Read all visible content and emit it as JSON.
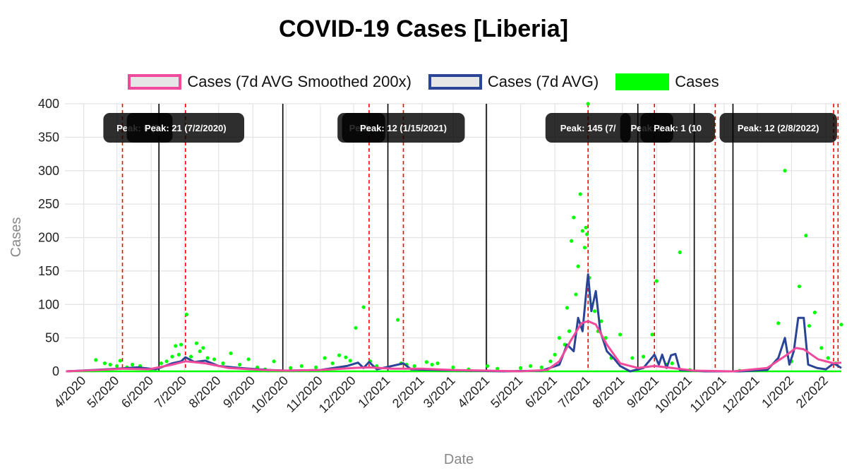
{
  "chart_data": {
    "type": "line",
    "title": "COVID-19 Cases [Liberia]",
    "xlabel": "Date",
    "ylabel": "Cases",
    "ylim": [
      0,
      400
    ],
    "xlim": [
      "2020-03-15",
      "2022-02-15"
    ],
    "y_ticks": [
      0,
      50,
      100,
      150,
      200,
      250,
      300,
      350,
      400
    ],
    "x_ticks": [
      {
        "date": "2020-04-01",
        "label": "4/2020"
      },
      {
        "date": "2020-05-01",
        "label": "5/2020"
      },
      {
        "date": "2020-06-01",
        "label": "6/2020"
      },
      {
        "date": "2020-07-01",
        "label": "7/2020"
      },
      {
        "date": "2020-08-01",
        "label": "8/2020"
      },
      {
        "date": "2020-09-01",
        "label": "9/2020"
      },
      {
        "date": "2020-10-01",
        "label": "10/2020"
      },
      {
        "date": "2020-11-01",
        "label": "11/2020"
      },
      {
        "date": "2020-12-01",
        "label": "12/2020"
      },
      {
        "date": "2021-01-01",
        "label": "1/2021"
      },
      {
        "date": "2021-02-01",
        "label": "2/2021"
      },
      {
        "date": "2021-03-01",
        "label": "3/2021"
      },
      {
        "date": "2021-04-01",
        "label": "4/2021"
      },
      {
        "date": "2021-05-01",
        "label": "5/2021"
      },
      {
        "date": "2021-06-01",
        "label": "6/2021"
      },
      {
        "date": "2021-07-01",
        "label": "7/2021"
      },
      {
        "date": "2021-08-01",
        "label": "8/2021"
      },
      {
        "date": "2021-09-01",
        "label": "9/2021"
      },
      {
        "date": "2021-10-01",
        "label": "10/2021"
      },
      {
        "date": "2021-11-01",
        "label": "11/2021"
      },
      {
        "date": "2021-12-01",
        "label": "12/2021"
      },
      {
        "date": "2022-01-01",
        "label": "1/2022"
      },
      {
        "date": "2022-02-01",
        "label": "2/2022"
      }
    ],
    "legend": {
      "position": "top",
      "entries": [
        {
          "label": "Cases (7d AVG Smoothed 200x)",
          "color": "#ef4a9b"
        },
        {
          "label": "Cases (7d AVG)",
          "color": "#2a4596"
        },
        {
          "label": "Cases",
          "color": "#00ff00"
        }
      ]
    },
    "grid": true,
    "wave_boundaries": [
      "2020-06-08",
      "2020-09-28",
      "2021-01-01",
      "2021-03-31",
      "2021-08-15",
      "2021-10-05",
      "2021-11-09"
    ],
    "peak_lines": [
      "2020-05-06",
      "2020-07-02",
      "2020-12-15",
      "2021-01-15",
      "2021-07-01",
      "2021-08-30",
      "2021-10-24",
      "2022-02-08",
      "2022-02-12"
    ],
    "peak_labels": [
      {
        "date": "2020-05-20",
        "text": "Peak: 6 (5"
      },
      {
        "date": "2020-07-02",
        "text": "Peak: 21 (7/2/2020)"
      },
      {
        "date": "2020-12-08",
        "text": "Peak: "
      },
      {
        "date": "2021-01-15",
        "text": "Peak: 12 (1/15/2021)"
      },
      {
        "date": "2021-07-01",
        "text": "Peak: 145 (7/"
      },
      {
        "date": "2021-08-23",
        "text": "Peak: 2"
      },
      {
        "date": "2021-09-20",
        "text": "Peak: 1 (10"
      },
      {
        "date": "2021-12-20",
        "text": "Peak: 12 (2/8/2022)"
      }
    ],
    "series": [
      {
        "name": "Cases (7d AVG Smoothed 200x)",
        "color": "#ef4a9b",
        "points": [
          [
            "2020-03-16",
            0
          ],
          [
            "2020-04-15",
            2
          ],
          [
            "2020-05-06",
            4
          ],
          [
            "2020-05-30",
            3
          ],
          [
            "2020-06-20",
            10
          ],
          [
            "2020-07-02",
            15
          ],
          [
            "2020-07-20",
            12
          ],
          [
            "2020-08-10",
            5
          ],
          [
            "2020-09-10",
            2
          ],
          [
            "2020-10-01",
            1
          ],
          [
            "2020-11-01",
            2
          ],
          [
            "2020-12-01",
            5
          ],
          [
            "2020-12-15",
            6
          ],
          [
            "2021-01-05",
            4
          ],
          [
            "2021-02-01",
            4
          ],
          [
            "2021-03-01",
            2
          ],
          [
            "2021-04-01",
            1
          ],
          [
            "2021-05-01",
            0
          ],
          [
            "2021-05-25",
            2
          ],
          [
            "2021-06-05",
            15
          ],
          [
            "2021-06-15",
            45
          ],
          [
            "2021-06-25",
            72
          ],
          [
            "2021-07-01",
            75
          ],
          [
            "2021-07-08",
            70
          ],
          [
            "2021-07-18",
            40
          ],
          [
            "2021-07-30",
            12
          ],
          [
            "2021-08-15",
            5
          ],
          [
            "2021-08-30",
            8
          ],
          [
            "2021-09-15",
            5
          ],
          [
            "2021-10-05",
            1
          ],
          [
            "2021-11-09",
            0
          ],
          [
            "2021-12-10",
            5
          ],
          [
            "2021-12-28",
            25
          ],
          [
            "2022-01-05",
            35
          ],
          [
            "2022-01-12",
            33
          ],
          [
            "2022-01-25",
            18
          ],
          [
            "2022-02-08",
            12
          ],
          [
            "2022-02-15",
            13
          ]
        ]
      },
      {
        "name": "Cases (7d AVG)",
        "color": "#2a4596",
        "points": [
          [
            "2020-03-16",
            0
          ],
          [
            "2020-04-10",
            2
          ],
          [
            "2020-05-01",
            4
          ],
          [
            "2020-05-20",
            6
          ],
          [
            "2020-06-05",
            3
          ],
          [
            "2020-06-20",
            12
          ],
          [
            "2020-06-28",
            15
          ],
          [
            "2020-07-02",
            21
          ],
          [
            "2020-07-10",
            14
          ],
          [
            "2020-07-20",
            16
          ],
          [
            "2020-08-01",
            8
          ],
          [
            "2020-08-20",
            5
          ],
          [
            "2020-09-15",
            2
          ],
          [
            "2020-10-01",
            1
          ],
          [
            "2020-11-01",
            2
          ],
          [
            "2020-11-25",
            8
          ],
          [
            "2020-12-05",
            13
          ],
          [
            "2020-12-10",
            5
          ],
          [
            "2020-12-15",
            14
          ],
          [
            "2020-12-22",
            3
          ],
          [
            "2021-01-10",
            10
          ],
          [
            "2021-01-15",
            12
          ],
          [
            "2021-01-22",
            3
          ],
          [
            "2021-02-15",
            2
          ],
          [
            "2021-03-15",
            1
          ],
          [
            "2021-04-15",
            0
          ],
          [
            "2021-05-20",
            1
          ],
          [
            "2021-06-05",
            10
          ],
          [
            "2021-06-12",
            40
          ],
          [
            "2021-06-18",
            30
          ],
          [
            "2021-06-22",
            80
          ],
          [
            "2021-06-26",
            60
          ],
          [
            "2021-06-30",
            130
          ],
          [
            "2021-07-01",
            145
          ],
          [
            "2021-07-04",
            90
          ],
          [
            "2021-07-08",
            120
          ],
          [
            "2021-07-12",
            60
          ],
          [
            "2021-07-18",
            30
          ],
          [
            "2021-07-24",
            20
          ],
          [
            "2021-07-30",
            8
          ],
          [
            "2021-08-08",
            0
          ],
          [
            "2021-08-20",
            5
          ],
          [
            "2021-08-30",
            25
          ],
          [
            "2021-09-03",
            10
          ],
          [
            "2021-09-06",
            25
          ],
          [
            "2021-09-10",
            5
          ],
          [
            "2021-09-14",
            24
          ],
          [
            "2021-09-18",
            26
          ],
          [
            "2021-09-22",
            2
          ],
          [
            "2021-10-15",
            0
          ],
          [
            "2021-11-15",
            0
          ],
          [
            "2021-12-10",
            2
          ],
          [
            "2021-12-20",
            20
          ],
          [
            "2021-12-26",
            50
          ],
          [
            "2021-12-30",
            10
          ],
          [
            "2022-01-03",
            30
          ],
          [
            "2022-01-07",
            80
          ],
          [
            "2022-01-12",
            80
          ],
          [
            "2022-01-16",
            10
          ],
          [
            "2022-01-24",
            5
          ],
          [
            "2022-02-01",
            3
          ],
          [
            "2022-02-08",
            12
          ],
          [
            "2022-02-15",
            5
          ]
        ]
      },
      {
        "name": "Cases",
        "color": "#00ff00",
        "points": [
          [
            "2020-04-12",
            17
          ],
          [
            "2020-04-20",
            12
          ],
          [
            "2020-04-25",
            10
          ],
          [
            "2020-05-01",
            8
          ],
          [
            "2020-05-04",
            16
          ],
          [
            "2020-05-10",
            6
          ],
          [
            "2020-05-15",
            10
          ],
          [
            "2020-05-22",
            8
          ],
          [
            "2020-06-01",
            2
          ],
          [
            "2020-06-10",
            12
          ],
          [
            "2020-06-15",
            15
          ],
          [
            "2020-06-20",
            22
          ],
          [
            "2020-06-23",
            38
          ],
          [
            "2020-06-26",
            25
          ],
          [
            "2020-06-28",
            40
          ],
          [
            "2020-07-03",
            85
          ],
          [
            "2020-07-07",
            22
          ],
          [
            "2020-07-12",
            42
          ],
          [
            "2020-07-15",
            30
          ],
          [
            "2020-07-18",
            35
          ],
          [
            "2020-07-22",
            20
          ],
          [
            "2020-07-28",
            18
          ],
          [
            "2020-08-05",
            12
          ],
          [
            "2020-08-12",
            27
          ],
          [
            "2020-08-20",
            10
          ],
          [
            "2020-08-28",
            18
          ],
          [
            "2020-09-05",
            6
          ],
          [
            "2020-09-12",
            3
          ],
          [
            "2020-09-20",
            15
          ],
          [
            "2020-10-05",
            5
          ],
          [
            "2020-10-15",
            8
          ],
          [
            "2020-10-28",
            6
          ],
          [
            "2020-11-05",
            20
          ],
          [
            "2020-11-12",
            12
          ],
          [
            "2020-11-18",
            24
          ],
          [
            "2020-11-24",
            21
          ],
          [
            "2020-11-28",
            16
          ],
          [
            "2020-12-03",
            65
          ],
          [
            "2020-12-10",
            96
          ],
          [
            "2020-12-16",
            15
          ],
          [
            "2020-12-22",
            8
          ],
          [
            "2021-01-10",
            77
          ],
          [
            "2021-01-13",
            12
          ],
          [
            "2021-01-18",
            10
          ],
          [
            "2021-01-25",
            8
          ],
          [
            "2021-02-05",
            14
          ],
          [
            "2021-02-10",
            10
          ],
          [
            "2021-02-15",
            12
          ],
          [
            "2021-03-01",
            6
          ],
          [
            "2021-03-15",
            3
          ],
          [
            "2021-04-01",
            8
          ],
          [
            "2021-04-10",
            4
          ],
          [
            "2021-05-01",
            5
          ],
          [
            "2021-05-10",
            8
          ],
          [
            "2021-05-20",
            6
          ],
          [
            "2021-05-28",
            15
          ],
          [
            "2021-06-01",
            25
          ],
          [
            "2021-06-05",
            50
          ],
          [
            "2021-06-10",
            40
          ],
          [
            "2021-06-12",
            95
          ],
          [
            "2021-06-14",
            60
          ],
          [
            "2021-06-16",
            195
          ],
          [
            "2021-06-18",
            230
          ],
          [
            "2021-06-20",
            115
          ],
          [
            "2021-06-22",
            157
          ],
          [
            "2021-06-24",
            265
          ],
          [
            "2021-06-26",
            210
          ],
          [
            "2021-06-28",
            185
          ],
          [
            "2021-06-29",
            215
          ],
          [
            "2021-06-30",
            205
          ],
          [
            "2021-07-01",
            400
          ],
          [
            "2021-07-02",
            140
          ],
          [
            "2021-07-04",
            100
          ],
          [
            "2021-07-07",
            90
          ],
          [
            "2021-07-10",
            60
          ],
          [
            "2021-07-13",
            75
          ],
          [
            "2021-07-17",
            50
          ],
          [
            "2021-07-22",
            20
          ],
          [
            "2021-07-30",
            55
          ],
          [
            "2021-08-10",
            20
          ],
          [
            "2021-08-20",
            22
          ],
          [
            "2021-08-28",
            55
          ],
          [
            "2021-09-01",
            135
          ],
          [
            "2021-09-10",
            10
          ],
          [
            "2021-09-15",
            12
          ],
          [
            "2021-09-22",
            178
          ],
          [
            "2021-10-01",
            2
          ],
          [
            "2021-11-15",
            1
          ],
          [
            "2021-12-20",
            72
          ],
          [
            "2021-12-26",
            300
          ],
          [
            "2022-01-01",
            15
          ],
          [
            "2022-01-08",
            127
          ],
          [
            "2022-01-14",
            203
          ],
          [
            "2022-01-17",
            68
          ],
          [
            "2022-01-22",
            88
          ],
          [
            "2022-01-28",
            35
          ],
          [
            "2022-02-03",
            20
          ],
          [
            "2022-02-10",
            12
          ],
          [
            "2022-02-15",
            70
          ]
        ]
      }
    ]
  }
}
